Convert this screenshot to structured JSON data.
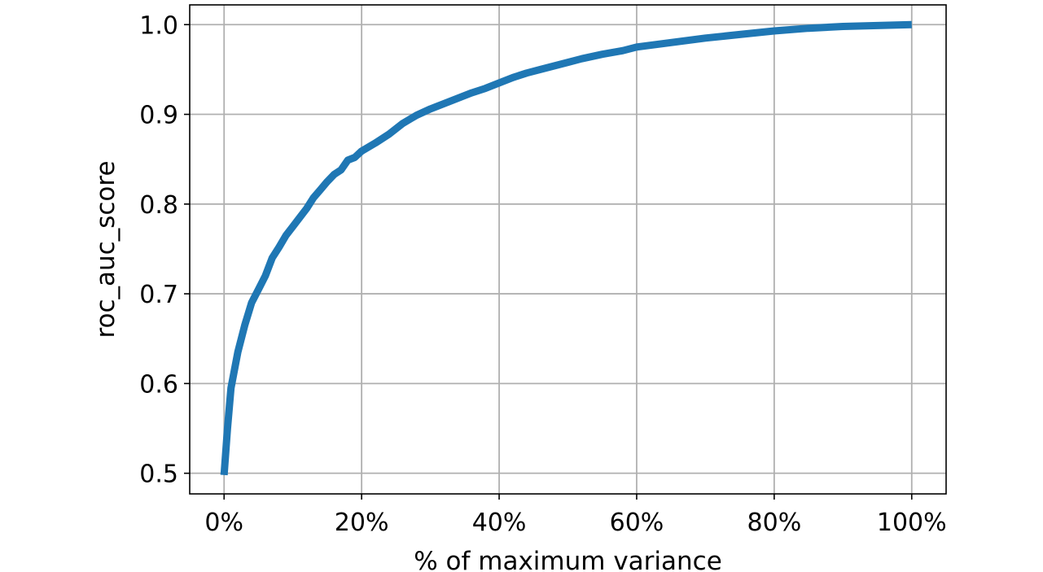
{
  "chart_data": {
    "type": "line",
    "xlabel": "% of maximum variance",
    "ylabel": "roc_auc_score",
    "xlim": [
      -5,
      105
    ],
    "ylim": [
      0.477,
      1.022
    ],
    "grid": true,
    "x_ticks": [
      0,
      20,
      40,
      60,
      80,
      100
    ],
    "x_tick_labels": [
      "0%",
      "20%",
      "40%",
      "60%",
      "80%",
      "100%"
    ],
    "y_ticks": [
      0.5,
      0.6,
      0.7,
      0.8,
      0.9,
      1.0
    ],
    "y_tick_labels": [
      "0.5",
      "0.6",
      "0.7",
      "0.8",
      "0.9",
      "1.0"
    ],
    "series": [
      {
        "color": "#1f77b4",
        "x": [
          0,
          0.5,
          1,
          2,
          3,
          4,
          5,
          6,
          7,
          8,
          9,
          10,
          11,
          12,
          13,
          14,
          15,
          16,
          17,
          18,
          19,
          20,
          22,
          24,
          26,
          28,
          30,
          32,
          34,
          36,
          38,
          40,
          42,
          44,
          46,
          48,
          50,
          52,
          55,
          58,
          60,
          65,
          70,
          75,
          80,
          85,
          90,
          95,
          100
        ],
        "values": [
          0.498,
          0.55,
          0.595,
          0.635,
          0.665,
          0.69,
          0.705,
          0.72,
          0.74,
          0.752,
          0.765,
          0.775,
          0.785,
          0.795,
          0.807,
          0.816,
          0.825,
          0.833,
          0.838,
          0.849,
          0.852,
          0.859,
          0.868,
          0.878,
          0.89,
          0.899,
          0.906,
          0.912,
          0.918,
          0.924,
          0.929,
          0.935,
          0.941,
          0.946,
          0.95,
          0.954,
          0.958,
          0.962,
          0.967,
          0.971,
          0.975,
          0.98,
          0.985,
          0.989,
          0.993,
          0.996,
          0.998,
          0.999,
          1.0
        ]
      }
    ]
  }
}
